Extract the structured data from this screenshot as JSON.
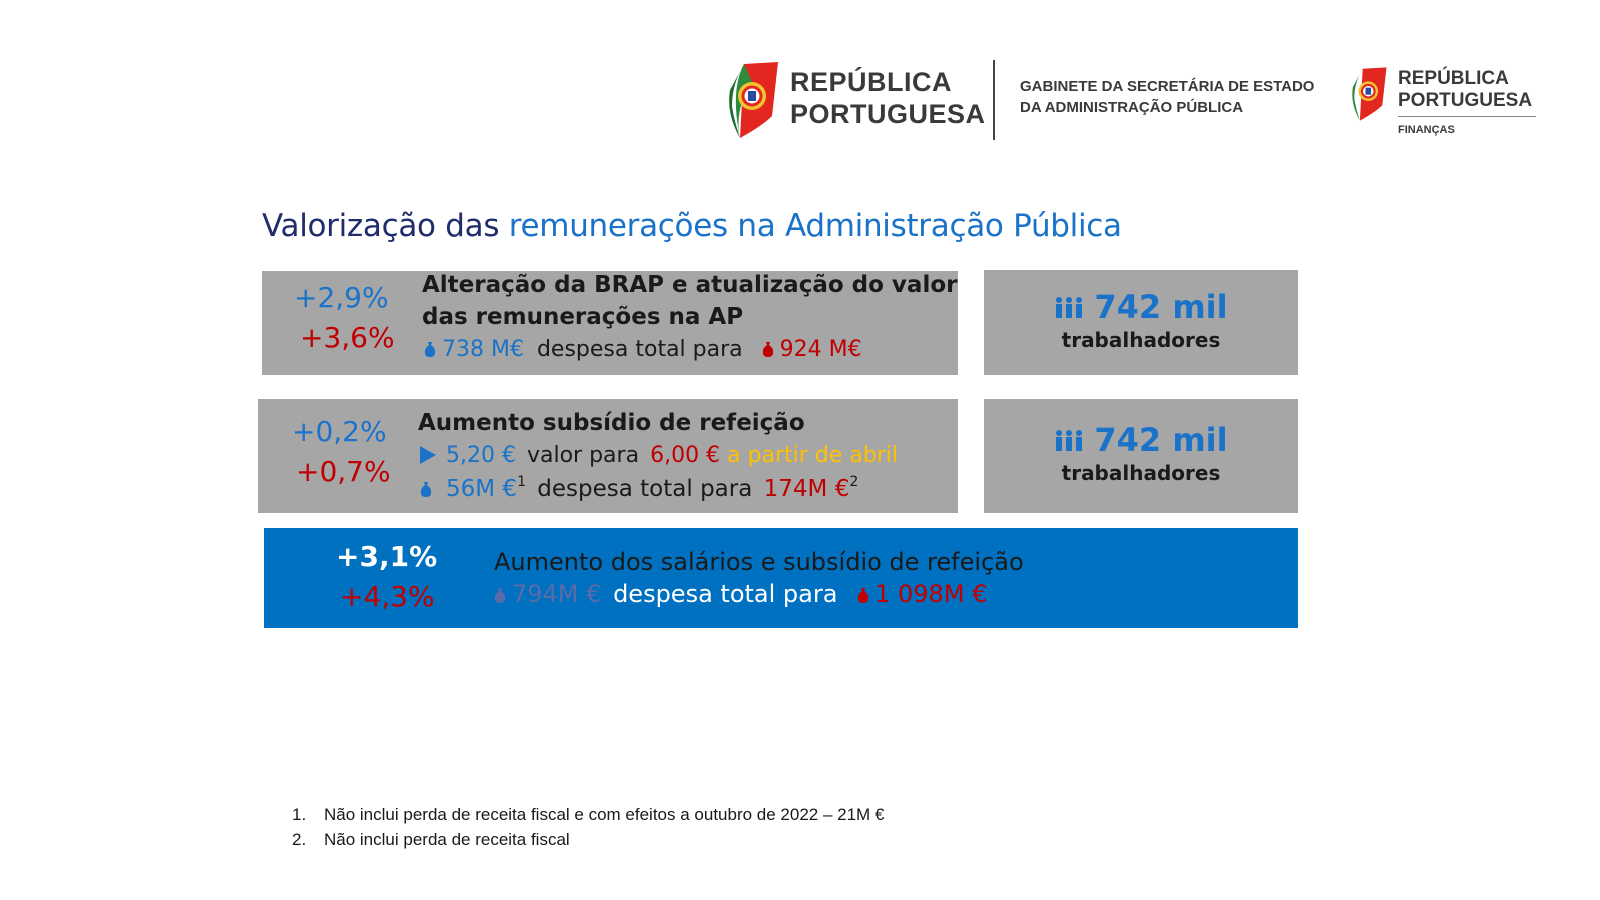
{
  "header": {
    "logo1_line1": "REPÚBLICA",
    "logo1_line2": "PORTUGUESA",
    "gabinete_line1": "GABINETE DA SECRETÁRIA DE ESTADO",
    "gabinete_line2": "DA ADMINISTRAÇÃO PÚBLICA",
    "logo2_line1": "REPÚBLICA",
    "logo2_line2": "PORTUGUESA",
    "logo2_sub": "FINANÇAS"
  },
  "title": {
    "part1": "Valorização das",
    "part2": "remunerações na Administração Pública"
  },
  "box1": {
    "pct_blue": "+2,9%",
    "pct_red": "+3,6%",
    "heading_line1": "Alteração da BRAP e atualização do valor",
    "heading_line2": "das remunerações na AP",
    "from_value": "738 M€",
    "middle_text": "despesa total para",
    "to_value": "924 M€"
  },
  "side1": {
    "value": "742 mil",
    "label": "trabalhadores"
  },
  "box2": {
    "pct_blue": "+0,2%",
    "pct_red": "+0,7%",
    "heading": "Aumento subsídio de refeição",
    "meal_from": "5,20 €",
    "meal_mid": "valor para",
    "meal_to": "6,00 €",
    "meal_when": "a partir de abril",
    "cost_from": "56M €",
    "cost_from_note": "1",
    "cost_mid": "despesa total para",
    "cost_to": "174M €",
    "cost_to_note": "2"
  },
  "side2": {
    "value": "742 mil",
    "label": "trabalhadores"
  },
  "box3": {
    "pct_white": "+3,1%",
    "pct_red": "+4,3%",
    "heading": "Aumento dos salários e subsídio de refeição",
    "from_value": "794M €",
    "middle_text": "despesa total para",
    "to_value": "1 098M €"
  },
  "footnotes": [
    {
      "num": "1.",
      "text": "Não inclui perda de receita fiscal e com efeitos a outubro de 2022 – 21M €"
    },
    {
      "num": "2.",
      "text": "Não inclui perda de receita fiscal"
    }
  ],
  "colors": {
    "title_dark": "#1f2d6b",
    "accent_blue": "#1a73c8",
    "accent_red": "#c00000",
    "box_gray": "#a6a6a6",
    "box_blue": "#0070c0",
    "highlight_gold": "#ffc000"
  },
  "icons": [
    "money-bag-icon",
    "people-icon",
    "play-arrow-icon"
  ]
}
